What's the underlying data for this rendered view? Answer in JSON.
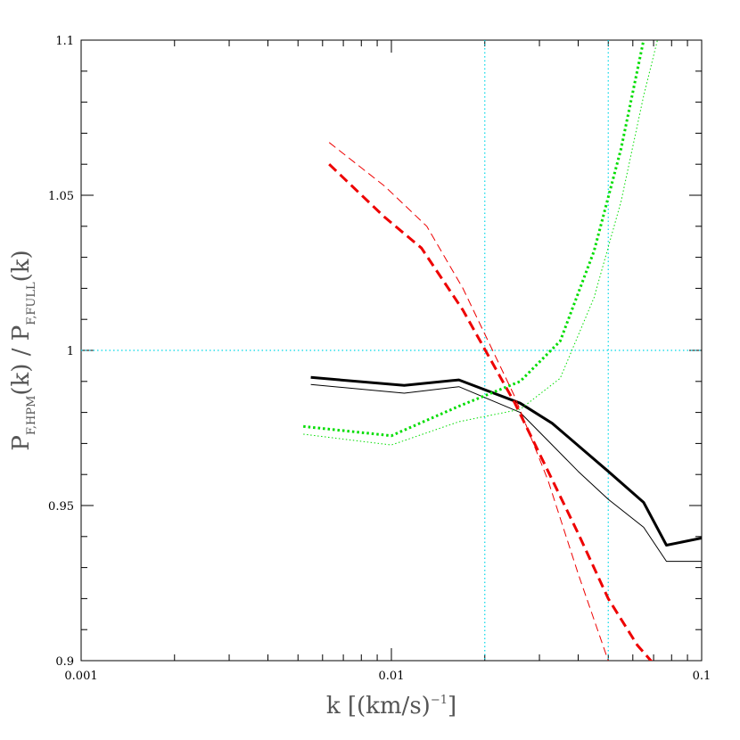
{
  "chart_data": {
    "type": "line",
    "xscale": "log",
    "xlim": [
      0.001,
      0.1
    ],
    "ylim": [
      0.9,
      1.1
    ],
    "xticks": [
      {
        "value": 0.001,
        "label": "0.001"
      },
      {
        "value": 0.01,
        "label": "0.01"
      },
      {
        "value": 0.1,
        "label": "0.1"
      }
    ],
    "yticks": [
      {
        "value": 0.9,
        "label": "0.9"
      },
      {
        "value": 0.95,
        "label": "0.95"
      },
      {
        "value": 1.0,
        "label": "1"
      },
      {
        "value": 1.05,
        "label": "1.05"
      },
      {
        "value": 1.1,
        "label": "1.1"
      }
    ],
    "xlabel": {
      "main": "k  [(km/s)",
      "sup": "−1",
      "end": "]"
    },
    "ylabel": {
      "p1": "P",
      "s1": "F,HPM",
      "p2": "(k)  /  P",
      "s2": "F,FULL",
      "p3": "(k)"
    },
    "reference_lines": {
      "vertical": [
        0.02,
        0.05
      ],
      "horizontal": [
        1.0
      ],
      "color": "#00d8e8"
    },
    "series": [
      {
        "color": "#000000",
        "style": "solid",
        "width": "thick",
        "x": [
          0.0055,
          0.011,
          0.0165,
          0.026,
          0.033,
          0.05,
          0.065,
          0.077,
          0.1
        ],
        "y": [
          0.9913,
          0.9887,
          0.9905,
          0.983,
          0.9765,
          0.961,
          0.951,
          0.9372,
          0.9395
        ]
      },
      {
        "color": "#000000",
        "style": "solid",
        "width": "thin",
        "x": [
          0.0055,
          0.011,
          0.0165,
          0.026,
          0.033,
          0.04,
          0.05,
          0.065,
          0.077,
          0.1
        ],
        "y": [
          0.989,
          0.9862,
          0.9883,
          0.98,
          0.9695,
          0.961,
          0.952,
          0.943,
          0.932,
          0.932
        ]
      },
      {
        "color": "#ee0000",
        "style": "dashed",
        "width": "thick",
        "x": [
          0.0063,
          0.0095,
          0.0125,
          0.017,
          0.025,
          0.032,
          0.04,
          0.05,
          0.062,
          0.07
        ],
        "y": [
          1.06,
          1.043,
          1.033,
          1.013,
          0.983,
          0.961,
          0.941,
          0.92,
          0.905,
          0.899
        ]
      },
      {
        "color": "#ee0000",
        "style": "dashed",
        "width": "thin",
        "x": [
          0.0063,
          0.0095,
          0.013,
          0.017,
          0.025,
          0.032,
          0.04,
          0.05
        ],
        "y": [
          1.067,
          1.053,
          1.04,
          1.02,
          0.985,
          0.958,
          0.928,
          0.9
        ]
      },
      {
        "color": "#00dd00",
        "style": "dotted",
        "width": "thick",
        "x": [
          0.0052,
          0.01,
          0.0165,
          0.026,
          0.035,
          0.045,
          0.055,
          0.065,
          0.071
        ],
        "y": [
          0.9755,
          0.9725,
          0.982,
          0.99,
          1.003,
          1.032,
          1.065,
          1.1,
          1.12
        ]
      },
      {
        "color": "#00dd00",
        "style": "dotted",
        "width": "thin",
        "x": [
          0.0052,
          0.01,
          0.0165,
          0.026,
          0.035,
          0.045,
          0.055,
          0.065,
          0.072
        ],
        "y": [
          0.973,
          0.9695,
          0.977,
          0.981,
          0.991,
          1.017,
          1.048,
          1.082,
          1.1
        ]
      }
    ]
  }
}
